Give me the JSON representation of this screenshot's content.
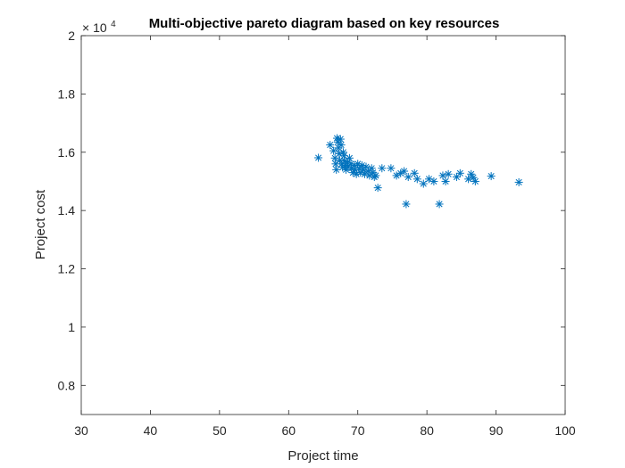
{
  "chart_data": {
    "type": "scatter",
    "title": "Multi-objective pareto diagram based on key resources",
    "xlabel": "Project time",
    "ylabel": "Project cost",
    "xlim": [
      30,
      100
    ],
    "ylim": [
      0.7,
      2.0
    ],
    "y_exponent_base": "× 10",
    "y_exponent_power": "4",
    "xticks": [
      "30",
      "40",
      "50",
      "60",
      "70",
      "80",
      "90",
      "100"
    ],
    "yticks": [
      "0.8",
      "1",
      "1.2",
      "1.4",
      "1.6",
      "1.8",
      "2"
    ],
    "xtick_values": [
      30,
      40,
      50,
      60,
      70,
      80,
      90,
      100
    ],
    "ytick_values": [
      0.8,
      1.0,
      1.2,
      1.4,
      1.6,
      1.8,
      2.0
    ],
    "grid": false,
    "marker": "asterisk",
    "marker_color": "#0072BD",
    "series": [
      {
        "points": [
          [
            64.3,
            1.581
          ],
          [
            66.0,
            1.625
          ],
          [
            66.5,
            1.605
          ],
          [
            66.7,
            1.58
          ],
          [
            66.8,
            1.56
          ],
          [
            66.9,
            1.54
          ],
          [
            67.0,
            1.648
          ],
          [
            67.1,
            1.635
          ],
          [
            67.2,
            1.615
          ],
          [
            67.3,
            1.595
          ],
          [
            67.4,
            1.572
          ],
          [
            67.5,
            1.645
          ],
          [
            67.6,
            1.625
          ],
          [
            67.7,
            1.56
          ],
          [
            67.8,
            1.548
          ],
          [
            67.9,
            1.6
          ],
          [
            68.0,
            1.588
          ],
          [
            68.1,
            1.57
          ],
          [
            68.2,
            1.555
          ],
          [
            68.3,
            1.54
          ],
          [
            68.5,
            1.565
          ],
          [
            68.6,
            1.55
          ],
          [
            68.8,
            1.58
          ],
          [
            69.0,
            1.56
          ],
          [
            69.1,
            1.545
          ],
          [
            69.3,
            1.53
          ],
          [
            69.5,
            1.555
          ],
          [
            69.6,
            1.54
          ],
          [
            69.8,
            1.525
          ],
          [
            70.0,
            1.56
          ],
          [
            70.2,
            1.545
          ],
          [
            70.4,
            1.53
          ],
          [
            70.6,
            1.555
          ],
          [
            70.8,
            1.54
          ],
          [
            71.0,
            1.525
          ],
          [
            71.2,
            1.55
          ],
          [
            71.5,
            1.535
          ],
          [
            71.7,
            1.52
          ],
          [
            72.0,
            1.545
          ],
          [
            72.2,
            1.53
          ],
          [
            72.4,
            1.515
          ],
          [
            72.6,
            1.52
          ],
          [
            72.9,
            1.478
          ],
          [
            73.5,
            1.545
          ],
          [
            74.8,
            1.545
          ],
          [
            75.6,
            1.52
          ],
          [
            76.2,
            1.528
          ],
          [
            76.7,
            1.535
          ],
          [
            77.0,
            1.422
          ],
          [
            77.3,
            1.515
          ],
          [
            78.2,
            1.528
          ],
          [
            78.6,
            1.508
          ],
          [
            79.5,
            1.492
          ],
          [
            80.3,
            1.508
          ],
          [
            81.0,
            1.5
          ],
          [
            81.8,
            1.422
          ],
          [
            82.3,
            1.52
          ],
          [
            82.7,
            1.5
          ],
          [
            83.1,
            1.525
          ],
          [
            84.3,
            1.515
          ],
          [
            84.8,
            1.528
          ],
          [
            86.0,
            1.508
          ],
          [
            86.4,
            1.525
          ],
          [
            86.7,
            1.513
          ],
          [
            87.0,
            1.5
          ],
          [
            89.3,
            1.518
          ],
          [
            93.3,
            1.497
          ]
        ]
      }
    ]
  }
}
